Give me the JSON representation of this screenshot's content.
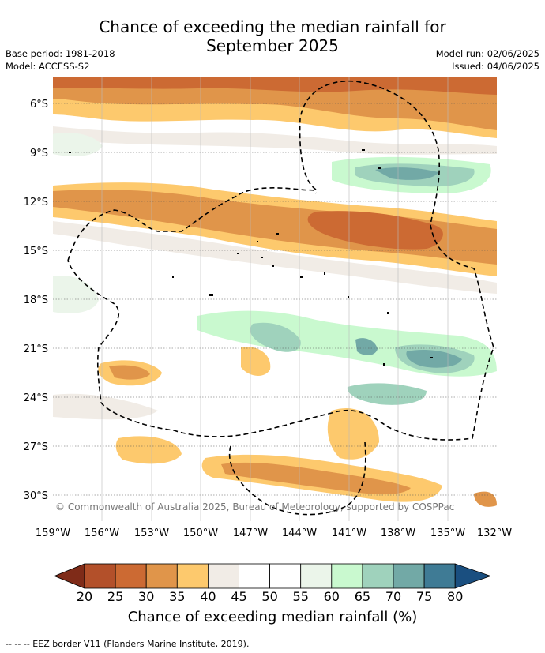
{
  "title_line1": "Chance of exceeding the median rainfall for",
  "title_line2": "September 2025",
  "meta_left": {
    "base_period": "Base period: 1981-2018",
    "model": "Model: ACCESS-S2"
  },
  "meta_right": {
    "model_run": "Model run: 02/06/2025",
    "issued": "Issued: 04/06/2025"
  },
  "copyright": "© Commonwealth of Australia 2025, Bureau of Meteorology, supported by COSPPac",
  "lat_ticks": [
    "6°S",
    "9°S",
    "12°S",
    "15°S",
    "18°S",
    "21°S",
    "24°S",
    "27°S",
    "30°S"
  ],
  "lon_ticks": [
    "159°W",
    "156°W",
    "153°W",
    "150°W",
    "147°W",
    "144°W",
    "141°W",
    "138°W",
    "135°W",
    "132°W"
  ],
  "colorbar": {
    "label": "Chance of exceeding median rainfall (%)",
    "ticks": [
      "20",
      "25",
      "30",
      "35",
      "40",
      "45",
      "50",
      "55",
      "60",
      "65",
      "70",
      "75",
      "80"
    ],
    "colors": [
      "#7f2b18",
      "#b3502a",
      "#cc6a33",
      "#e0954a",
      "#fdc96d",
      "#f1ece6",
      "#ffffff",
      "#ffffff",
      "#ebf5ea",
      "#c9f9cf",
      "#9fd2bc",
      "#72a9a6",
      "#3f7b95",
      "#1a4f80"
    ]
  },
  "footer": "-- -- -- EEZ border V11 (Flanders Marine Institute, 2019)."
}
